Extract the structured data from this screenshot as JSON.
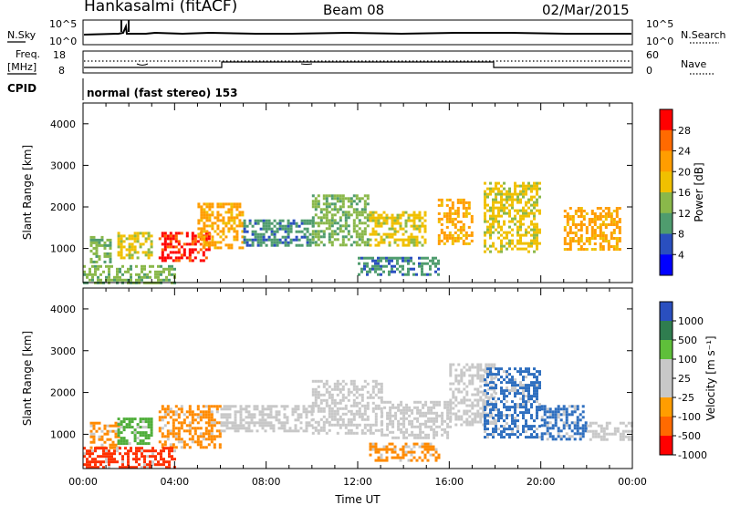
{
  "header": {
    "station": "Hankasalmi (fitACF)",
    "beam": "Beam 08",
    "date": "02/Mar/2015"
  },
  "noise_panel": {
    "left_label": "N.Sky",
    "right_label": "N.Search",
    "left_ticks": [
      "10^5",
      "10^0"
    ],
    "right_ticks": [
      "10^5",
      "10^0"
    ]
  },
  "freq_panel": {
    "left_label_1": "Freq.",
    "left_label_2": "[MHz]",
    "right_label": "Nave",
    "left_ticks": [
      "18",
      "8"
    ],
    "right_ticks": [
      "60",
      "0"
    ]
  },
  "cpid": {
    "label": "CPID",
    "value": "normal (fast stereo) 153"
  },
  "chart_data": [
    {
      "type": "heatmap",
      "name": "Power",
      "ylabel": "Slant Range [km]",
      "xlabel": "",
      "colorbar_label": "Power [dB]",
      "colorbar_ticks": [
        "28",
        "24",
        "20",
        "16",
        "12",
        "8",
        "4"
      ],
      "colorbar_colors": [
        "#ff0000",
        "#ff6a00",
        "#ff9d00",
        "#f0c000",
        "#8ab84a",
        "#4f9c6e",
        "#2a4fbf",
        "#0000ff"
      ],
      "ylim": [
        180,
        4500
      ],
      "yticks": [
        "4000",
        "3000",
        "2000",
        "1000"
      ],
      "xlim": [
        "00:00",
        "24:00"
      ],
      "regions": [
        {
          "t": [
            0.3,
            1.2
          ],
          "r": [
            700,
            1300
          ],
          "level": 12
        },
        {
          "t": [
            1.5,
            3.0
          ],
          "r": [
            800,
            1400
          ],
          "level": 16
        },
        {
          "t": [
            3.3,
            5.5
          ],
          "r": [
            700,
            1400
          ],
          "level": 28
        },
        {
          "t": [
            5.0,
            7.0
          ],
          "r": [
            1000,
            2100
          ],
          "level": 20
        },
        {
          "t": [
            7.0,
            10.0
          ],
          "r": [
            1100,
            1700
          ],
          "level": 8
        },
        {
          "t": [
            10.0,
            12.5
          ],
          "r": [
            1100,
            2300
          ],
          "level": 12
        },
        {
          "t": [
            12.5,
            15.0
          ],
          "r": [
            1100,
            1900
          ],
          "level": 16
        },
        {
          "t": [
            15.5,
            17.0
          ],
          "r": [
            1100,
            2200
          ],
          "level": 20
        },
        {
          "t": [
            17.5,
            20.0
          ],
          "r": [
            900,
            2600
          ],
          "level": 16
        },
        {
          "t": [
            21.0,
            23.5
          ],
          "r": [
            1000,
            2000
          ],
          "level": 20
        },
        {
          "t": [
            0.0,
            4.0
          ],
          "r": [
            200,
            600
          ],
          "level": 12
        },
        {
          "t": [
            12.0,
            15.5
          ],
          "r": [
            400,
            800
          ],
          "level": 8
        }
      ]
    },
    {
      "type": "heatmap",
      "name": "Velocity",
      "ylabel": "Slant Range [km]",
      "xlabel": "Time UT",
      "colorbar_label": "Velocity [m s⁻¹]",
      "colorbar_ticks": [
        "1000",
        "500",
        "100",
        "25",
        "-25",
        "-100",
        "-500",
        "-1000"
      ],
      "colorbar_colors": [
        "#2a4fbf",
        "#2f7d4f",
        "#5fbf3a",
        "#c8c8c8",
        "#c8c8c8",
        "#ff9d00",
        "#ff6a00",
        "#ff0000"
      ],
      "ylim": [
        180,
        4500
      ],
      "yticks": [
        "4000",
        "3000",
        "2000",
        "1000"
      ],
      "xlim": [
        "00:00",
        "24:00"
      ],
      "xticks": [
        "00:00",
        "04:00",
        "08:00",
        "12:00",
        "16:00",
        "20:00",
        "00:00"
      ],
      "regions": [
        {
          "t": [
            0.3,
            1.5
          ],
          "r": [
            700,
            1300
          ],
          "level": -100
        },
        {
          "t": [
            1.5,
            3.0
          ],
          "r": [
            800,
            1400
          ],
          "level": 100
        },
        {
          "t": [
            3.3,
            6.0
          ],
          "r": [
            700,
            1700
          ],
          "level": -100
        },
        {
          "t": [
            6.0,
            10.0
          ],
          "r": [
            1100,
            1700
          ],
          "level": 0
        },
        {
          "t": [
            10.0,
            13.0
          ],
          "r": [
            1000,
            2300
          ],
          "level": 0
        },
        {
          "t": [
            13.0,
            16.0
          ],
          "r": [
            900,
            1800
          ],
          "level": 0
        },
        {
          "t": [
            16.0,
            18.0
          ],
          "r": [
            1200,
            2700
          ],
          "level": 0
        },
        {
          "t": [
            17.5,
            20.0
          ],
          "r": [
            900,
            2600
          ],
          "level": 500
        },
        {
          "t": [
            20.0,
            22.0
          ],
          "r": [
            900,
            1700
          ],
          "level": 500
        },
        {
          "t": [
            0.0,
            4.0
          ],
          "r": [
            200,
            700
          ],
          "level": -500
        },
        {
          "t": [
            12.5,
            15.5
          ],
          "r": [
            400,
            800
          ],
          "level": -100
        },
        {
          "t": [
            22.0,
            24.0
          ],
          "r": [
            900,
            1300
          ],
          "level": 0
        }
      ]
    }
  ]
}
